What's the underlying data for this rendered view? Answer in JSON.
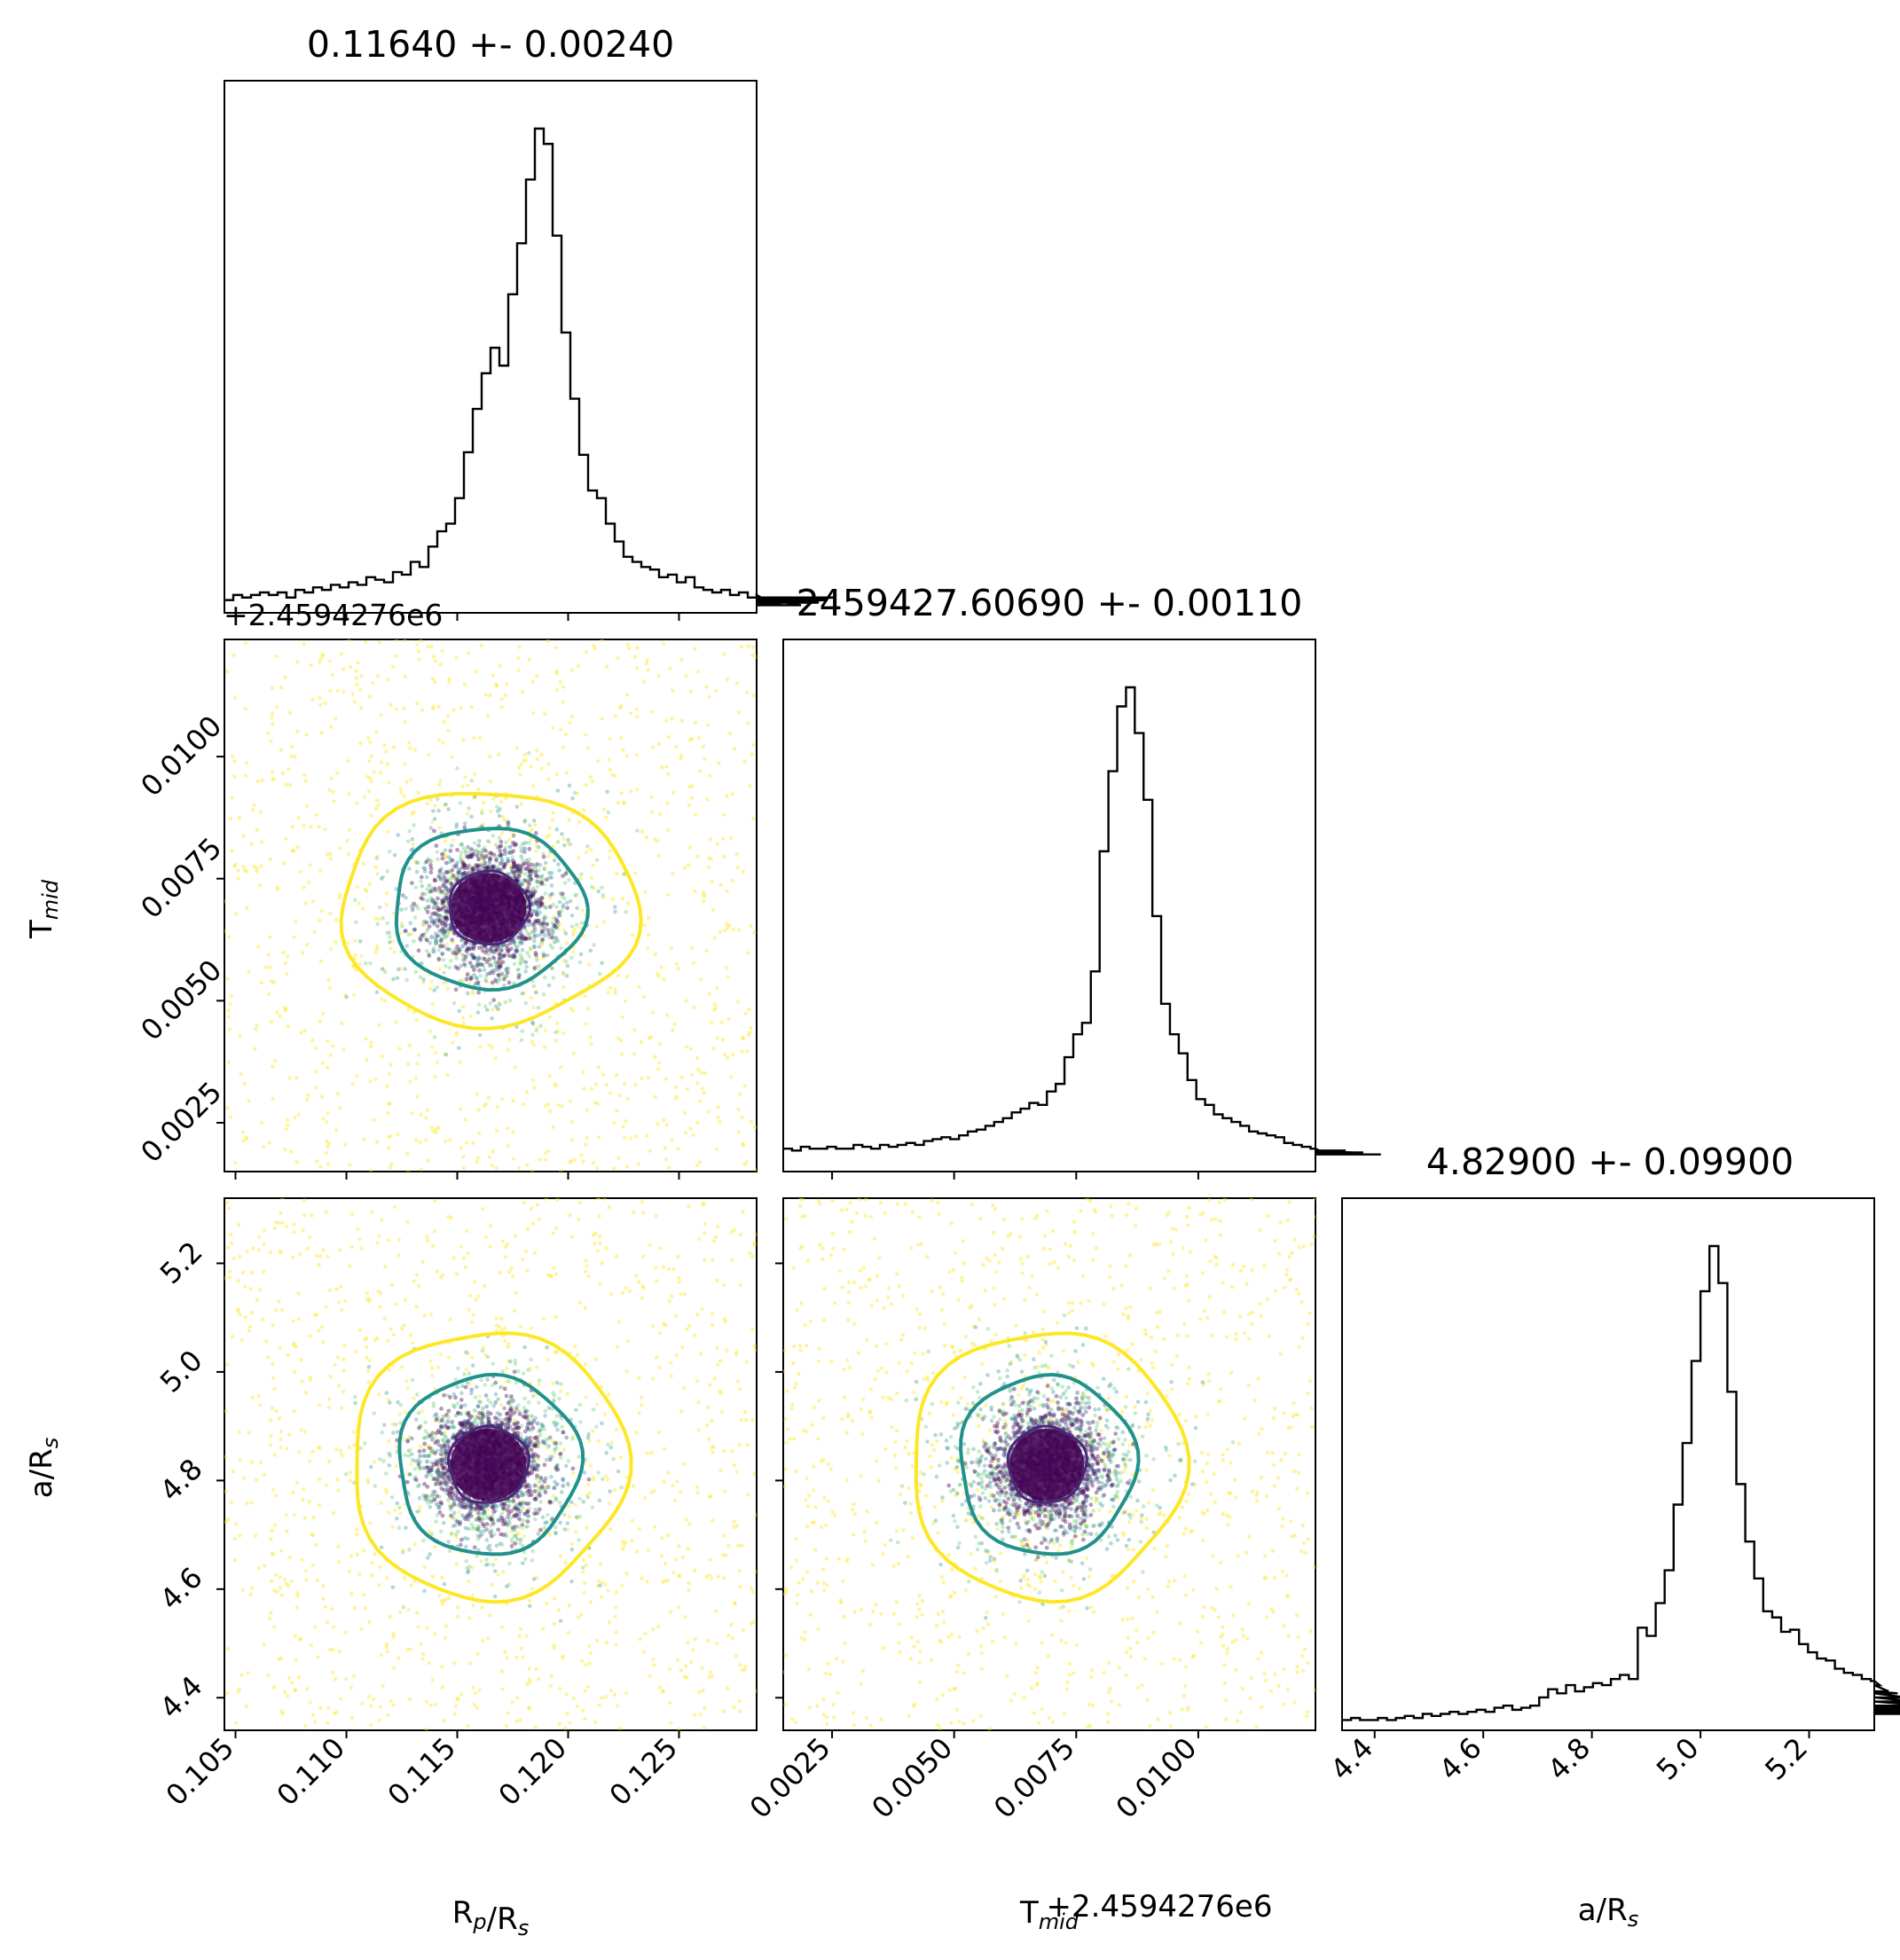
{
  "figure": {
    "titles": {
      "rp": "0.11640 +- 0.00240",
      "tmid": "2459427.60690 +- 0.00110",
      "ars": "4.82900 +- 0.09900"
    },
    "labels": {
      "rp_x": "R_p/R_s",
      "tmid_y": "T_mid",
      "tmid_x": "T_mid",
      "ars_y": "a/R_s",
      "ars_x": "a/R_s"
    },
    "offset_text": "+2.4594276e6",
    "colors": {
      "hist": "#000000",
      "contour_inner": "#482878",
      "contour_mid": "#21918c",
      "contour_outer": "#fde725",
      "points_core": "#440154",
      "points_mid": "#21918c",
      "points_outer": "#fde725"
    }
  },
  "chart_data": [
    {
      "type": "histogram",
      "panel": "Rp/Rs marginal",
      "title": "0.11640 +- 0.00240",
      "xlim": [
        0.1045,
        0.1285
      ],
      "bin_width": 0.0004,
      "counts": [
        5,
        7,
        6,
        7,
        8,
        7,
        8,
        6,
        9,
        8,
        10,
        9,
        11,
        10,
        12,
        11,
        14,
        13,
        12,
        16,
        15,
        20,
        18,
        26,
        32,
        35,
        45,
        63,
        80,
        94,
        104,
        97,
        125,
        145,
        170,
        190,
        184,
        148,
        110,
        84,
        62,
        48,
        45,
        35,
        28,
        22,
        20,
        18,
        17,
        14,
        15,
        12,
        14,
        10,
        9,
        8,
        9,
        7,
        8,
        6,
        7,
        5,
        6,
        4,
        6,
        3,
        5,
        4,
        5,
        6
      ],
      "xticks": [
        0.105,
        0.11,
        0.115,
        0.12,
        0.125
      ]
    },
    {
      "type": "histogram",
      "panel": "Tmid marginal",
      "title": "2459427.60690 +- 0.00110",
      "offset": 2459427.6,
      "xlim": [
        0.0015,
        0.0124
      ],
      "bin_width": 0.00018,
      "counts": [
        12,
        11,
        13,
        12,
        12,
        13,
        12,
        12,
        14,
        13,
        12,
        14,
        13,
        14,
        15,
        14,
        16,
        17,
        18,
        17,
        19,
        21,
        22,
        24,
        26,
        28,
        31,
        33,
        36,
        35,
        42,
        46,
        60,
        72,
        78,
        105,
        168,
        210,
        244,
        254,
        230,
        195,
        134,
        88,
        72,
        62,
        48,
        38,
        35,
        30,
        28,
        26,
        24,
        21,
        20,
        19,
        18,
        15,
        14,
        13,
        12,
        11,
        11,
        10,
        11,
        10,
        10,
        9,
        9
      ],
      "xticks": [
        0.0025,
        0.005,
        0.0075,
        0.01
      ]
    },
    {
      "type": "histogram",
      "panel": "a/Rs marginal",
      "title": "4.82900 +- 0.09900",
      "xlim": [
        4.34,
        5.32
      ],
      "bin_width": 0.0165,
      "counts": [
        5,
        6,
        5,
        5,
        6,
        5,
        6,
        7,
        6,
        8,
        7,
        8,
        9,
        8,
        9,
        10,
        9,
        11,
        12,
        10,
        11,
        12,
        16,
        20,
        18,
        22,
        19,
        21,
        23,
        22,
        25,
        27,
        25,
        50,
        46,
        62,
        78,
        110,
        140,
        180,
        214,
        236,
        218,
        165,
        120,
        92,
        74,
        58,
        55,
        48,
        49,
        42,
        38,
        35,
        34,
        30,
        28,
        27,
        25,
        24,
        22,
        19,
        18,
        16,
        14,
        12,
        11,
        10,
        9,
        8,
        10
      ],
      "xticks": [
        4.4,
        4.6,
        4.8,
        5.0,
        5.2
      ]
    },
    {
      "type": "scatter",
      "panel": "Tmid vs Rp/Rs",
      "x_center": 0.1164,
      "y_center": 0.0069,
      "x_sigma": 0.0024,
      "y_sigma": 0.0011,
      "xlim": [
        0.1045,
        0.1285
      ],
      "ylim": [
        0.0015,
        0.0124
      ],
      "yticks": [
        0.0025,
        0.005,
        0.0075,
        0.01
      ],
      "ytick_labels": [
        "0.0025",
        "0.0050",
        "0.0075",
        "0.0100"
      ],
      "contours": [
        {
          "level": "outer",
          "rx": 0.0067,
          "ry": 0.0024
        },
        {
          "level": "mid",
          "rx": 0.0043,
          "ry": 0.00165
        },
        {
          "level": "inner",
          "rx": 0.0018,
          "ry": 0.00075
        }
      ]
    },
    {
      "type": "scatter",
      "panel": "a/Rs vs Rp/Rs",
      "x_center": 0.1164,
      "y_center": 4.829,
      "x_sigma": 0.0024,
      "y_sigma": 0.099,
      "xlim": [
        0.1045,
        0.1285
      ],
      "ylim": [
        4.34,
        5.32
      ],
      "xticks": [
        0.105,
        0.11,
        0.115,
        0.12,
        0.125
      ],
      "xtick_labels": [
        "0.105",
        "0.110",
        "0.115",
        "0.120",
        "0.125"
      ],
      "yticks": [
        4.4,
        4.6,
        4.8,
        5.0,
        5.2
      ],
      "ytick_labels": [
        "4.4",
        "4.6",
        "4.8",
        "5.0",
        "5.2"
      ],
      "contours": [
        {
          "level": "outer",
          "rx": 0.0062,
          "ry": 0.246
        },
        {
          "level": "mid",
          "rx": 0.0041,
          "ry": 0.165
        },
        {
          "level": "inner",
          "rx": 0.0018,
          "ry": 0.07
        }
      ]
    },
    {
      "type": "scatter",
      "panel": "a/Rs vs Tmid",
      "x_center": 0.0069,
      "y_center": 4.829,
      "x_sigma": 0.0011,
      "y_sigma": 0.099,
      "xlim": [
        0.0015,
        0.0124
      ],
      "ylim": [
        4.34,
        5.32
      ],
      "xticks": [
        0.0025,
        0.005,
        0.0075,
        0.01
      ],
      "xtick_labels": [
        "0.0025",
        "0.0050",
        "0.0075",
        "0.0100"
      ],
      "contours": [
        {
          "level": "outer",
          "rx": 0.0028,
          "ry": 0.246
        },
        {
          "level": "mid",
          "rx": 0.0018,
          "ry": 0.165
        },
        {
          "level": "inner",
          "rx": 0.0008,
          "ry": 0.07
        }
      ]
    }
  ]
}
